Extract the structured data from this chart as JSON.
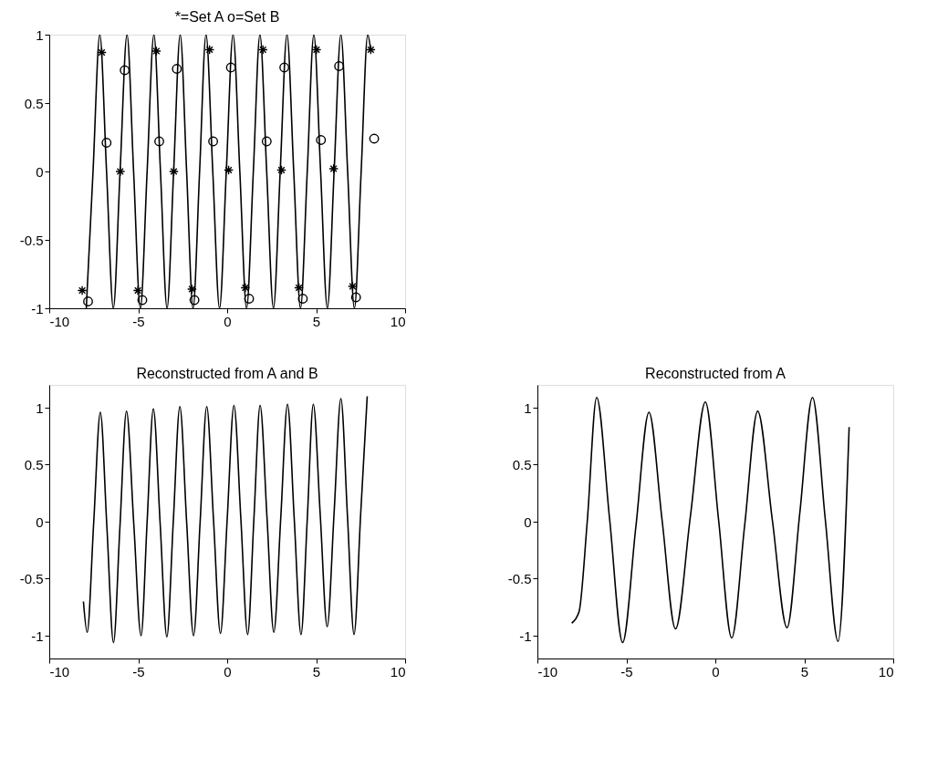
{
  "chart_data": [
    {
      "type": "line",
      "title": "*=Set A   o=Set B",
      "xlim": [
        -10,
        10
      ],
      "xticks": [
        -10,
        -5,
        0,
        5,
        10
      ],
      "ylim": [
        -1,
        1
      ],
      "yticks": [
        -1,
        -0.5,
        0,
        0.5,
        1
      ],
      "series": [
        {
          "type": "line",
          "color": "#000000",
          "marker": "none",
          "line_style": "solid",
          "x": [
            -7.92,
            -7.54,
            -7.16,
            -6.78,
            -6.4,
            -6.02,
            -5.63,
            -5.26,
            -4.88,
            -4.5,
            -4.12,
            -3.75,
            -3.38,
            -3.01,
            -2.64,
            -2.28,
            -1.92,
            -1.55,
            -1.19,
            -0.81,
            -0.43,
            -0.05,
            0.33,
            0.71,
            1.09,
            1.47,
            1.84,
            2.22,
            2.6,
            2.98,
            3.36,
            3.74,
            4.12,
            4.5,
            4.87,
            5.25,
            5.63,
            6.01,
            6.39,
            6.77,
            7.15,
            7.53,
            7.9,
            8.07
          ],
          "values": [
            -1,
            0,
            1,
            0,
            -1,
            0,
            1,
            0,
            -1,
            0,
            1,
            0,
            -1,
            0,
            1,
            0,
            -1,
            0,
            1,
            0,
            -1,
            0,
            1,
            0,
            -1,
            0,
            1,
            0,
            -1,
            0,
            1,
            0,
            -1,
            0,
            1,
            0,
            -1,
            0,
            1,
            0,
            -1,
            0,
            1,
            0.88
          ]
        },
        {
          "type": "scatter",
          "color": "#000000",
          "marker": "cross",
          "x": [
            -8.15,
            -7.05,
            -6.01,
            -5.02,
            -3.98,
            -3.0,
            -1.98,
            -0.99,
            0.08,
            1.02,
            2.01,
            3.05,
            4.03,
            5.02,
            5.98,
            7.05,
            8.07
          ],
          "values": [
            -0.87,
            0.87,
            0.0,
            -0.87,
            0.88,
            0.0,
            -0.86,
            0.89,
            0.01,
            -0.85,
            0.89,
            0.01,
            -0.85,
            0.89,
            0.02,
            -0.84,
            0.89
          ]
        },
        {
          "type": "scatter",
          "color": "#000000",
          "marker": "circle",
          "x": [
            -7.82,
            -6.78,
            -5.76,
            -4.77,
            -3.82,
            -2.83,
            -1.84,
            -0.79,
            0.21,
            1.23,
            2.22,
            3.21,
            4.25,
            5.27,
            6.29,
            7.24,
            8.26
          ],
          "values": [
            -0.95,
            0.21,
            0.74,
            -0.94,
            0.22,
            0.75,
            -0.94,
            0.22,
            0.76,
            -0.93,
            0.22,
            0.76,
            -0.93,
            0.23,
            0.77,
            -0.92,
            0.24
          ]
        }
      ]
    },
    {
      "type": "line",
      "title": "Reconstructed from A and B",
      "xlim": [
        -10,
        10
      ],
      "xticks": [
        -10,
        -5,
        0,
        5,
        10
      ],
      "ylim": [
        -1.2,
        1.2
      ],
      "yticks": [
        -1,
        -0.5,
        0,
        0.5,
        1
      ],
      "series": [
        {
          "type": "line",
          "color": "#000000",
          "marker": "none",
          "line_style": "solid",
          "x": [
            -8.08,
            -7.87,
            -7.5,
            -7.13,
            -6.76,
            -6.39,
            -6.03,
            -5.66,
            -5.25,
            -4.84,
            -4.5,
            -4.15,
            -3.77,
            -3.39,
            -3.03,
            -2.66,
            -2.28,
            -1.89,
            -1.52,
            -1.15,
            -0.77,
            -0.38,
            0.0,
            0.38,
            0.77,
            1.15,
            1.5,
            1.85,
            2.24,
            2.62,
            3.01,
            3.39,
            3.77,
            4.15,
            4.5,
            4.84,
            5.23,
            5.62,
            6.01,
            6.39,
            6.76,
            7.13,
            7.5,
            7.87
          ],
          "values": [
            -0.7,
            -0.97,
            0.0,
            0.96,
            -0.05,
            -1.06,
            -0.05,
            0.97,
            -0.02,
            -1.0,
            0.0,
            0.99,
            -0.01,
            -1.01,
            0.0,
            1.01,
            0.0,
            -1.0,
            0.0,
            1.01,
            0.02,
            -0.98,
            0.02,
            1.02,
            0.02,
            -0.99,
            0.02,
            1.02,
            0.03,
            -0.97,
            0.03,
            1.03,
            0.02,
            -0.99,
            0.02,
            1.03,
            0.06,
            -0.92,
            0.08,
            1.08,
            0.05,
            -0.99,
            0.06,
            1.1
          ]
        }
      ]
    },
    {
      "type": "line",
      "title": "Reconstructed from A",
      "xlim": [
        -10,
        10
      ],
      "xticks": [
        -10,
        -5,
        0,
        5,
        10
      ],
      "ylim": [
        -1.2,
        1.2
      ],
      "yticks": [
        -1,
        -0.5,
        0,
        0.5,
        1
      ],
      "series": [
        {
          "type": "line",
          "color": "#000000",
          "marker": "none",
          "line_style": "solid",
          "x": [
            -8.07,
            -7.66,
            -7.2,
            -6.67,
            -5.94,
            -5.21,
            -4.47,
            -3.73,
            -2.99,
            -2.24,
            -1.4,
            -0.56,
            0.18,
            0.92,
            1.65,
            2.38,
            3.2,
            4.03,
            4.75,
            5.46,
            6.18,
            6.9,
            7.52
          ],
          "values": [
            -0.89,
            -0.79,
            0.0,
            1.09,
            0.02,
            -1.06,
            -0.05,
            0.96,
            0.01,
            -0.94,
            0.05,
            1.05,
            0.02,
            -1.02,
            -0.03,
            0.97,
            0.02,
            -0.93,
            0.08,
            1.09,
            0.02,
            -1.05,
            0.83
          ]
        }
      ]
    }
  ]
}
